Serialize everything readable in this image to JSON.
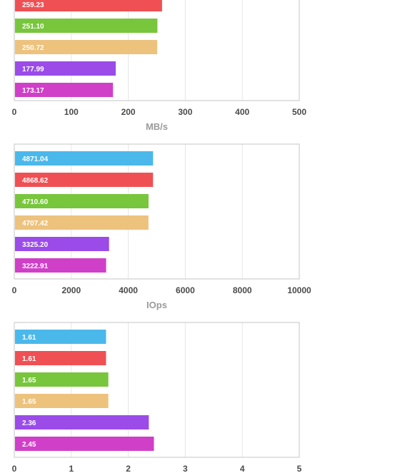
{
  "colors": [
    "#4ab8ea",
    "#ef5054",
    "#78c63c",
    "#edc27d",
    "#9a4be8",
    "#d03fc8"
  ],
  "chart_data": [
    {
      "type": "bar",
      "orientation": "horizontal",
      "xlabel": "MB/s",
      "xlim": [
        0,
        500
      ],
      "ticks": [
        "0",
        "100",
        "200",
        "300",
        "400",
        "500"
      ],
      "values": [
        259.23,
        251.1,
        250.72,
        177.99,
        173.17
      ],
      "labels": [
        "259.23",
        "251.10",
        "250.72",
        "177.99",
        "173.17"
      ],
      "series_colors": [
        "#ef5054",
        "#78c63c",
        "#edc27d",
        "#9a4be8",
        "#d03fc8"
      ],
      "grid": true
    },
    {
      "type": "bar",
      "orientation": "horizontal",
      "xlabel": "IOps",
      "xlim": [
        0,
        10000
      ],
      "ticks": [
        "0",
        "2000",
        "4000",
        "6000",
        "8000",
        "10000"
      ],
      "values": [
        4871.04,
        4868.62,
        4710.6,
        4707.42,
        3325.2,
        3222.91
      ],
      "labels": [
        "4871.04",
        "4868.62",
        "4710.60",
        "4707.42",
        "3325.20",
        "3222.91"
      ],
      "series_colors": [
        "#4ab8ea",
        "#ef5054",
        "#78c63c",
        "#edc27d",
        "#9a4be8",
        "#d03fc8"
      ],
      "grid": true
    },
    {
      "type": "bar",
      "orientation": "horizontal",
      "xlabel": "",
      "xlim": [
        0,
        5
      ],
      "ticks": [
        "0",
        "1",
        "2",
        "3",
        "4",
        "5"
      ],
      "values": [
        1.61,
        1.61,
        1.65,
        1.65,
        2.36,
        2.45
      ],
      "labels": [
        "1.61",
        "1.61",
        "1.65",
        "1.65",
        "2.36",
        "2.45"
      ],
      "series_colors": [
        "#4ab8ea",
        "#ef5054",
        "#78c63c",
        "#edc27d",
        "#9a4be8",
        "#d03fc8"
      ],
      "grid": true
    }
  ]
}
